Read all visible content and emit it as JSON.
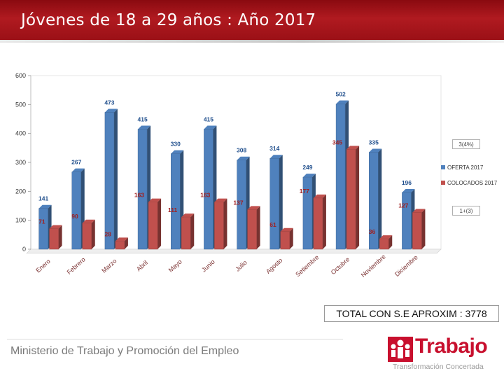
{
  "header": {
    "title": "Jóvenes de 18 a 29 años : Año 2017"
  },
  "chart_data": {
    "type": "bar",
    "title": "Jóvenes de 18 a 29 años : Año 2017",
    "categories": [
      "Enero",
      "Febrero",
      "Marzo",
      "Abril",
      "Mayo",
      "Junio",
      "Julio",
      "Agosto",
      "Setiembre",
      "Octubre",
      "Noviembre",
      "Diciembre"
    ],
    "series": [
      {
        "name": "OFERTA 2017",
        "color": "#4f81bd",
        "values": [
          141,
          267,
          473,
          415,
          330,
          415,
          308,
          314,
          249,
          502,
          335,
          196
        ]
      },
      {
        "name": "COLOCADOS 2017",
        "color": "#c0504d",
        "values": [
          71,
          90,
          28,
          163,
          111,
          163,
          137,
          61,
          177,
          345,
          36,
          127
        ]
      }
    ],
    "y_ticks": [
      "0",
      "100",
      "200",
      "300",
      "400",
      "500",
      "600"
    ],
    "ylim": [
      0,
      600
    ],
    "grid": false,
    "legend_position": "right"
  },
  "side_notes": {
    "top": "3(4%)",
    "bottom": "1+(3)"
  },
  "total": {
    "text": "TOTAL CON S.E APROXIM : 3778"
  },
  "footer": {
    "ministry": "Ministerio de Trabajo y Promoción del Empleo",
    "logo_title": "Trabajo",
    "logo_subtitle": "Transformación Concertada",
    "brand_color": "#c8102e"
  }
}
